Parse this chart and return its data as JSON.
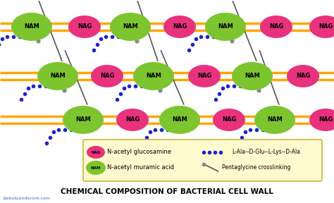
{
  "title": "CHEMICAL COMPOSITION OF BACTERIAL CELL WALL",
  "title_fontsize": 7.5,
  "watermark": "@studyandscore.com",
  "bg_color": "#ffffff",
  "stripe_color": "#FFA500",
  "nam_color": "#7DC52E",
  "nag_color": "#E8327D",
  "nam_label": "NAM",
  "nag_label": "NAG",
  "legend_bg": "#FFFACD",
  "legend_border": "#C8B840",
  "dot_color": "#2222CC",
  "cross_color": "#555555",
  "legend_nag_text": "N-acetyl glucosamine",
  "legend_nam_text": "N-acetyl muramic acid",
  "legend_peptide_text": "L-Ala--D-Glu--L-Lys--D-Ala",
  "legend_cross_text": "Pentaglycine crosslinking"
}
